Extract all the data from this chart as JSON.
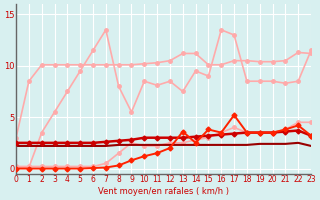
{
  "title": "",
  "xlabel": "Vent moyen/en rafales ( km/h )",
  "ylabel": "",
  "bg_color": "#d8f0f0",
  "grid_color": "#ffffff",
  "yticks": [
    0,
    5,
    10,
    15
  ],
  "xlim": [
    0,
    23
  ],
  "ylim": [
    -0.5,
    16
  ],
  "x": [
    0,
    1,
    2,
    3,
    4,
    5,
    6,
    7,
    8,
    9,
    10,
    11,
    12,
    13,
    14,
    15,
    16,
    17,
    18,
    19,
    20,
    21,
    22,
    23
  ],
  "series": [
    {
      "y": [
        3.0,
        8.5,
        10.1,
        10.1,
        10.1,
        10.1,
        10.1,
        10.1,
        10.1,
        10.1,
        10.2,
        10.3,
        10.5,
        11.2,
        11.2,
        10.1,
        10.1,
        10.5,
        10.5,
        10.4,
        10.4,
        10.5,
        11.3,
        11.2
      ],
      "color": "#ffaaaa",
      "lw": 1.2,
      "marker": "o",
      "ms": 2.5,
      "zorder": 2
    },
    {
      "y": [
        0.05,
        0.1,
        3.5,
        5.5,
        7.5,
        9.5,
        11.5,
        13.5,
        8.0,
        5.5,
        8.5,
        8.1,
        8.5,
        7.5,
        9.5,
        9.0,
        13.5,
        13.0,
        8.5,
        8.5,
        8.5,
        8.3,
        8.5,
        11.5
      ],
      "color": "#ffaaaa",
      "lw": 1.2,
      "marker": "o",
      "ms": 2.5,
      "zorder": 2
    },
    {
      "y": [
        0.2,
        0.2,
        0.2,
        0.2,
        0.2,
        0.2,
        0.2,
        0.5,
        1.5,
        2.5,
        2.2,
        2.2,
        2.5,
        2.5,
        2.8,
        3.0,
        3.5,
        4.0,
        3.5,
        3.5,
        3.5,
        3.8,
        4.5,
        4.5
      ],
      "color": "#ffaaaa",
      "lw": 1.2,
      "marker": "o",
      "ms": 2.5,
      "zorder": 2
    },
    {
      "y": [
        2.5,
        2.5,
        2.5,
        2.5,
        2.5,
        2.5,
        2.5,
        2.6,
        2.7,
        2.8,
        3.0,
        3.0,
        3.0,
        3.0,
        3.1,
        3.2,
        3.3,
        3.4,
        3.5,
        3.5,
        3.5,
        3.6,
        3.7,
        3.2
      ],
      "color": "#cc0000",
      "lw": 1.8,
      "marker": "D",
      "ms": 2.5,
      "zorder": 3
    },
    {
      "y": [
        0.0,
        0.0,
        0.0,
        0.0,
        0.0,
        0.0,
        0.05,
        0.1,
        0.3,
        0.8,
        1.2,
        1.5,
        2.0,
        3.6,
        2.5,
        3.8,
        3.5,
        5.2,
        3.5,
        3.5,
        3.5,
        3.8,
        4.2,
        3.2
      ],
      "color": "#ff2200",
      "lw": 1.4,
      "marker": "D",
      "ms": 2.5,
      "zorder": 3
    },
    {
      "y": [
        2.2,
        2.2,
        2.2,
        2.2,
        2.2,
        2.2,
        2.2,
        2.2,
        2.3,
        2.3,
        2.3,
        2.3,
        2.3,
        2.3,
        2.3,
        2.3,
        2.3,
        2.3,
        2.3,
        2.4,
        2.4,
        2.4,
        2.5,
        2.2
      ],
      "color": "#990000",
      "lw": 1.5,
      "marker": null,
      "ms": 0,
      "zorder": 2
    }
  ]
}
